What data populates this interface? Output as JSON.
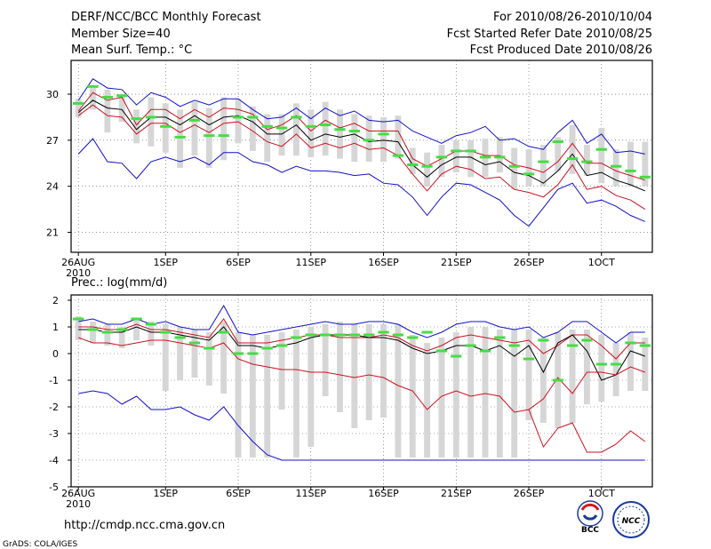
{
  "header": {
    "title": "DERF/NCC/BCC Monthly Forecast",
    "member_size": "Member Size=40",
    "variable1": "Mean Surf. Temp.: °C",
    "period": "For 2010/08/26-2010/10/04",
    "start_date": "Fcst Started Refer Date 2010/08/25",
    "produced_date": "Fcst Produced Date 2010/08/26"
  },
  "footer": {
    "url": "http://cmdp.ncc.cma.gov.cn",
    "grads": "GrADS: COLA/IGES",
    "logo_bcc": "BCC",
    "logo_ncc": "NCC"
  },
  "colors": {
    "median": "#000000",
    "member_bound": "#1010cc",
    "percentile": "#cc1020",
    "observed_mean": "#44dd44",
    "spread_bar": "#d6d6d6"
  },
  "chart_data": [
    {
      "type": "line",
      "title": "Mean Surf. Temp.: °C",
      "xlabel": "",
      "ylabel": "",
      "x_tick_labels": [
        "26AUG",
        "1SEP",
        "6SEP",
        "11SEP",
        "16SEP",
        "21SEP",
        "26SEP",
        "1OCT"
      ],
      "x_tick_days": [
        0,
        6,
        11,
        16,
        21,
        26,
        31,
        36
      ],
      "x_year_label": "2010",
      "y_ticks": [
        21,
        24,
        27,
        30
      ],
      "ylim": [
        19.7,
        32.2
      ],
      "xlim": [
        -0.5,
        39.5
      ],
      "grid": true,
      "x": [
        0,
        1,
        2,
        3,
        4,
        5,
        6,
        7,
        8,
        9,
        10,
        11,
        12,
        13,
        14,
        15,
        16,
        17,
        18,
        19,
        20,
        21,
        22,
        23,
        24,
        25,
        26,
        27,
        28,
        29,
        30,
        31,
        32,
        33,
        34,
        35,
        36,
        37,
        38,
        39
      ],
      "series": [
        {
          "name": "ensemble max",
          "color": "#1010cc",
          "values": [
            29.6,
            31.0,
            30.4,
            30.3,
            29.3,
            30.1,
            29.8,
            29.2,
            29.6,
            29.3,
            29.7,
            29.7,
            29.0,
            28.4,
            28.5,
            29.1,
            28.4,
            29.1,
            28.6,
            28.9,
            28.3,
            28.2,
            28.3,
            27.6,
            27.2,
            26.8,
            27.3,
            27.5,
            27.9,
            27.0,
            27.1,
            26.6,
            26.4,
            27.5,
            28.3,
            26.8,
            27.4,
            26.2,
            26.3,
            26.1
          ]
        },
        {
          "name": "upper percentile",
          "color": "#cc1020",
          "values": [
            28.9,
            30.1,
            29.6,
            29.8,
            28.0,
            29.0,
            29.0,
            28.4,
            29.0,
            28.5,
            29.1,
            29.0,
            28.7,
            27.7,
            28.0,
            28.6,
            27.6,
            28.3,
            27.8,
            28.1,
            27.6,
            27.6,
            27.6,
            25.8,
            25.3,
            25.8,
            26.3,
            26.3,
            26.0,
            26.0,
            25.4,
            25.2,
            24.9,
            25.6,
            26.8,
            25.5,
            25.5,
            25.0,
            24.7,
            24.4
          ]
        },
        {
          "name": "ensemble median",
          "color": "#000000",
          "values": [
            28.8,
            29.6,
            29.1,
            29.0,
            27.7,
            28.5,
            28.5,
            28.0,
            28.6,
            28.0,
            28.5,
            28.6,
            28.2,
            27.4,
            27.4,
            28.0,
            27.0,
            27.4,
            27.2,
            27.4,
            26.9,
            27.0,
            26.9,
            25.4,
            24.6,
            25.4,
            25.9,
            25.9,
            25.4,
            25.6,
            24.9,
            24.7,
            24.2,
            25.0,
            26.1,
            24.7,
            24.9,
            24.4,
            24.1,
            23.7
          ]
        },
        {
          "name": "lower percentile",
          "color": "#cc1020",
          "values": [
            28.6,
            29.3,
            28.6,
            28.5,
            27.4,
            28.1,
            28.1,
            27.5,
            28.0,
            27.5,
            28.1,
            28.2,
            27.6,
            26.9,
            26.6,
            27.4,
            26.5,
            26.8,
            26.5,
            26.8,
            26.4,
            26.5,
            26.0,
            24.8,
            23.7,
            24.8,
            25.3,
            25.1,
            24.5,
            24.6,
            23.8,
            23.6,
            23.3,
            24.1,
            25.4,
            23.8,
            24.0,
            23.4,
            23.1,
            22.5
          ]
        },
        {
          "name": "ensemble min",
          "color": "#1010cc",
          "values": [
            26.1,
            27.1,
            25.6,
            25.5,
            24.5,
            25.6,
            25.9,
            25.6,
            25.9,
            25.4,
            26.2,
            26.2,
            25.6,
            25.4,
            24.9,
            25.3,
            25.0,
            25.0,
            24.9,
            24.7,
            24.8,
            24.2,
            24.1,
            23.3,
            22.1,
            23.3,
            24.2,
            24.1,
            23.6,
            23.1,
            22.1,
            21.4,
            22.6,
            23.8,
            24.2,
            22.9,
            23.1,
            22.7,
            22.1,
            21.7
          ]
        }
      ],
      "spread_bars": {
        "upper": [
          29.7,
          30.4,
          30.3,
          30.0,
          29.0,
          29.8,
          29.4,
          29.0,
          29.5,
          29.1,
          29.8,
          29.7,
          29.2,
          28.7,
          28.7,
          29.4,
          29.0,
          29.5,
          29.0,
          28.7,
          28.6,
          28.5,
          28.6,
          26.5,
          26.2,
          26.7,
          27.0,
          27.0,
          27.1,
          27.2,
          26.5,
          26.4,
          26.7,
          27.2,
          28.0,
          26.7,
          27.8,
          26.4,
          26.9,
          26.9
        ],
        "lower": [
          28.5,
          29.0,
          27.5,
          28.2,
          26.8,
          26.6,
          26.2,
          25.2,
          26.0,
          25.2,
          25.7,
          26.8,
          26.3,
          25.6,
          26.0,
          26.0,
          25.9,
          26.0,
          25.8,
          25.6,
          25.6,
          25.6,
          25.8,
          24.8,
          24.0,
          24.6,
          24.9,
          24.6,
          24.6,
          24.9,
          23.8,
          24.0,
          24.0,
          25.0,
          24.8,
          24.7,
          24.2,
          24.0,
          24.0,
          24.0
        ]
      },
      "observed_mean": [
        29.4,
        30.5,
        29.8,
        29.9,
        28.4,
        28.5,
        27.9,
        27.2,
        28.3,
        27.3,
        27.3,
        28.5,
        28.5,
        27.9,
        27.8,
        28.5,
        27.9,
        28.0,
        27.7,
        27.6,
        27.0,
        27.4,
        26.0,
        25.4,
        25.3,
        25.9,
        26.3,
        26.3,
        25.9,
        25.9,
        25.3,
        24.8,
        25.6,
        26.9,
        25.8,
        25.6,
        26.4,
        25.3,
        25.0,
        24.6
      ]
    },
    {
      "type": "line",
      "title": "Prec.: log(mm/d)",
      "xlabel": "",
      "ylabel": "",
      "x_tick_labels": [
        "26AUG",
        "1SEP",
        "6SEP",
        "11SEP",
        "16SEP",
        "21SEP",
        "26SEP",
        "1OCT"
      ],
      "x_tick_days": [
        0,
        6,
        11,
        16,
        21,
        26,
        31,
        36
      ],
      "x_year_label": "2010",
      "y_ticks": [
        -5,
        -4,
        -3,
        -2,
        -1,
        0,
        1,
        2
      ],
      "ylim": [
        -5,
        2.2
      ],
      "xlim": [
        -0.5,
        39.5
      ],
      "grid": true,
      "x": [
        0,
        1,
        2,
        3,
        4,
        5,
        6,
        7,
        8,
        9,
        10,
        11,
        12,
        13,
        14,
        15,
        16,
        17,
        18,
        19,
        20,
        21,
        22,
        23,
        24,
        25,
        26,
        27,
        28,
        29,
        30,
        31,
        32,
        33,
        34,
        35,
        36,
        37,
        38,
        39
      ],
      "series": [
        {
          "name": "ensemble max",
          "color": "#1010cc",
          "values": [
            1.2,
            1.3,
            1.1,
            1.1,
            1.3,
            1.1,
            1.2,
            1.0,
            0.9,
            0.9,
            1.8,
            0.8,
            0.7,
            0.8,
            0.9,
            1.0,
            1.1,
            1.2,
            1.1,
            1.1,
            1.2,
            1.2,
            1.1,
            0.8,
            0.6,
            0.8,
            1.1,
            1.2,
            1.2,
            1.0,
            0.9,
            1.0,
            0.6,
            0.8,
            1.2,
            1.2,
            0.8,
            0.4,
            0.8,
            0.8
          ]
        },
        {
          "name": "upper percentile",
          "color": "#cc1020",
          "values": [
            1.0,
            1.0,
            0.9,
            0.9,
            1.1,
            0.9,
            0.9,
            0.8,
            0.7,
            0.6,
            1.3,
            0.4,
            0.4,
            0.4,
            0.5,
            0.6,
            0.7,
            0.7,
            0.6,
            0.6,
            0.6,
            0.7,
            0.6,
            0.3,
            0.1,
            0.3,
            0.6,
            0.7,
            0.6,
            0.5,
            0.4,
            0.5,
            0.0,
            0.3,
            0.7,
            0.7,
            0.3,
            -0.2,
            0.4,
            0.4
          ]
        },
        {
          "name": "ensemble median",
          "color": "#000000",
          "values": [
            0.9,
            0.9,
            0.8,
            0.8,
            1.0,
            0.8,
            0.8,
            0.7,
            0.6,
            0.5,
            1.0,
            0.3,
            0.3,
            0.2,
            0.3,
            0.4,
            0.6,
            0.7,
            0.7,
            0.7,
            0.6,
            0.6,
            0.5,
            0.2,
            0.0,
            0.1,
            0.3,
            0.3,
            0.1,
            0.3,
            -0.1,
            0.3,
            -0.7,
            0.4,
            0.7,
            0.1,
            -1.0,
            -0.8,
            0.1,
            -0.1
          ]
        },
        {
          "name": "lower percentile",
          "color": "#cc1020",
          "values": [
            0.6,
            0.4,
            0.4,
            0.3,
            0.4,
            0.5,
            0.5,
            0.4,
            0.3,
            0.2,
            0.4,
            -0.2,
            -0.4,
            -0.5,
            -0.6,
            -0.6,
            -0.7,
            -0.7,
            -0.8,
            -0.9,
            -0.8,
            -0.9,
            -1.2,
            -1.4,
            -2.1,
            -1.6,
            -1.4,
            -1.6,
            -1.5,
            -1.6,
            -2.2,
            -2.1,
            -1.7,
            -0.9,
            -1.5,
            -0.7,
            -0.7,
            -0.8,
            -0.5,
            -0.7
          ]
        },
        {
          "name": "ensemble min",
          "color": "#1010cc",
          "values": [
            -1.5,
            -1.4,
            -1.5,
            -1.9,
            -1.6,
            -2.1,
            -2.1,
            -2.0,
            -2.3,
            -2.5,
            -2.0,
            -2.7,
            -3.3,
            -3.8,
            -4.0,
            -4.0,
            -4.0,
            -4.0,
            -4.0,
            -4.0,
            -4.0,
            -4.0,
            -4.0,
            -4.0,
            -4.0,
            -4.0,
            -4.0,
            -4.0,
            -4.0,
            -4.0,
            -4.0,
            -4.0,
            -4.0,
            -4.0,
            -4.0,
            -4.0,
            -4.0,
            -4.0,
            -4.0,
            -4.0
          ]
        }
      ],
      "extra_lines": [
        {
          "name": "lower tail",
          "color": "#cc1020",
          "values": [
            null,
            null,
            null,
            null,
            null,
            null,
            null,
            null,
            null,
            null,
            null,
            null,
            null,
            null,
            null,
            null,
            null,
            null,
            null,
            null,
            null,
            null,
            null,
            null,
            null,
            null,
            null,
            null,
            null,
            null,
            null,
            -2.1,
            -3.5,
            -2.8,
            -2.6,
            -3.7,
            -3.7,
            -3.4,
            -2.9,
            -3.3
          ]
        }
      ],
      "spread_bars": {
        "upper": [
          1.4,
          1.2,
          1.1,
          1.0,
          1.3,
          1.2,
          1.1,
          1.0,
          0.9,
          0.8,
          1.2,
          0.8,
          0.7,
          0.7,
          0.8,
          0.9,
          1.0,
          1.1,
          1.2,
          1.1,
          1.1,
          1.1,
          1.1,
          0.7,
          0.4,
          0.6,
          0.8,
          1.0,
          1.0,
          0.9,
          0.9,
          0.9,
          0.6,
          0.8,
          0.9,
          0.9,
          0.7,
          0.4,
          0.8,
          0.6
        ],
        "lower": [
          0.5,
          0.4,
          0.3,
          0.2,
          0.5,
          0.3,
          -1.4,
          -1.0,
          -0.9,
          -1.2,
          -1.5,
          -3.9,
          -3.9,
          -3.9,
          -2.1,
          -3.9,
          -3.5,
          -1.6,
          -2.2,
          -2.8,
          -2.5,
          -2.4,
          -3.9,
          -3.9,
          -3.9,
          -3.9,
          -3.9,
          -3.9,
          -3.9,
          -3.9,
          -3.9,
          -2.5,
          -2.6,
          -2.8,
          -2.6,
          -1.9,
          -1.8,
          -1.6,
          -1.4,
          -1.4
        ]
      },
      "observed_mean": [
        1.3,
        0.9,
        0.8,
        0.9,
        1.3,
        1.1,
        0.8,
        0.6,
        0.4,
        0.2,
        0.8,
        0.0,
        0.0,
        0.2,
        0.3,
        0.6,
        0.7,
        0.7,
        0.7,
        0.7,
        0.7,
        0.8,
        0.7,
        0.6,
        0.8,
        0.1,
        -0.1,
        0.3,
        0.1,
        0.6,
        0.3,
        -0.2,
        0.5,
        -1.0,
        0.3,
        0.5,
        -0.4,
        -0.4,
        0.4,
        0.3
      ]
    }
  ]
}
